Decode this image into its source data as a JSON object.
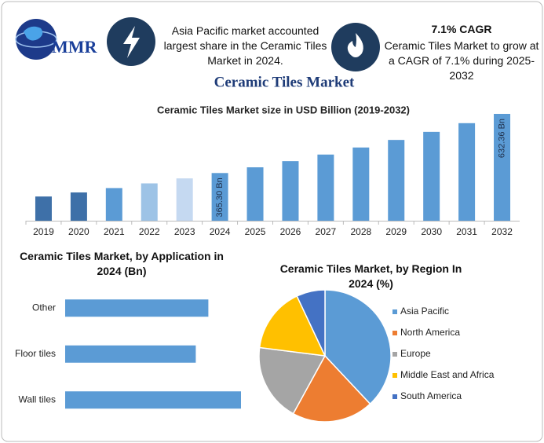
{
  "header": {
    "logo": "MMR",
    "info": [
      {
        "text": "Asia Pacific market accounted largest share in the Ceramic Tiles Market in 2024."
      },
      {
        "title": "7.1% CAGR",
        "text": "Ceramic Tiles Market to grow at a CAGR of 7.1% during 2025-2032"
      }
    ],
    "title": "Ceramic Tiles Market"
  },
  "chart_data": [
    {
      "type": "bar",
      "title": "Ceramic Tiles Market size in USD Billion (2019-2032)",
      "categories": [
        "2019",
        "2020",
        "2021",
        "2022",
        "2023",
        "2024",
        "2025",
        "2026",
        "2027",
        "2028",
        "2029",
        "2030",
        "2031",
        "2032"
      ],
      "values": [
        259.3,
        277.7,
        297.4,
        318.5,
        341.1,
        365.3,
        391.2,
        419.0,
        448.7,
        480.6,
        514.7,
        551.2,
        590.4,
        632.36
      ],
      "value_labels": [
        null,
        null,
        null,
        null,
        null,
        "365.30 Bn",
        null,
        null,
        null,
        null,
        null,
        null,
        null,
        "632.36 Bn"
      ],
      "colors": [
        "#3e70a8",
        "#3e70a8",
        "#5b9bd5",
        "#9dc3e6",
        "#c5d9f1",
        "#5b9bd5",
        "#5b9bd5",
        "#5b9bd5",
        "#5b9bd5",
        "#5b9bd5",
        "#5b9bd5",
        "#5b9bd5",
        "#5b9bd5",
        "#5b9bd5"
      ],
      "ylim": [
        150,
        650
      ]
    },
    {
      "type": "bar",
      "horizontal": true,
      "title": "Ceramic Tiles Market, by Application in 2024 (Bn)",
      "categories": [
        "Other",
        "Floor tiles",
        "Wall tiles"
      ],
      "values": [
        114,
        104,
        140
      ],
      "color": "#5b9bd5",
      "xlim": [
        0,
        150
      ]
    },
    {
      "type": "pie",
      "title": "Ceramic Tiles Market, by Region In 2024 (%)",
      "categories": [
        "Asia Pacific",
        "North America",
        "Europe",
        "Middle East and Africa",
        "South America"
      ],
      "values": [
        38,
        20,
        19,
        16,
        7
      ],
      "colors": [
        "#5b9bd5",
        "#ed7d31",
        "#a5a5a5",
        "#ffc000",
        "#4472c4"
      ]
    }
  ]
}
